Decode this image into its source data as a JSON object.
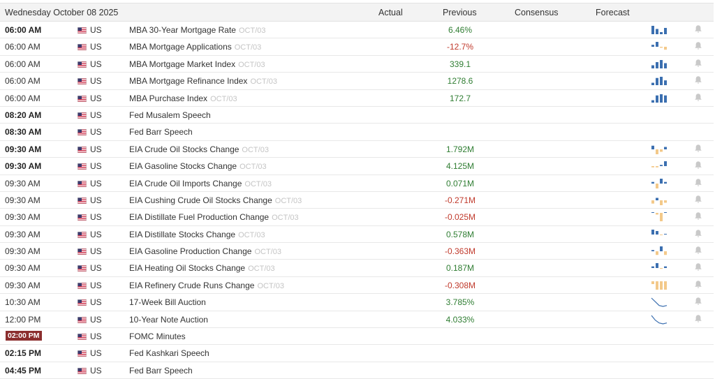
{
  "header": {
    "date": "Wednesday October 08 2025",
    "actual": "Actual",
    "previous": "Previous",
    "consensus": "Consensus",
    "forecast": "Forecast"
  },
  "colors": {
    "positive": "#2f7d32",
    "negative": "#c0392b",
    "bar_blue": "#3b6fb0",
    "bar_tan": "#f3c98a",
    "highlight": "#8b2e2e"
  },
  "rows": [
    {
      "time": "06:00 AM",
      "bold": true,
      "highlight": false,
      "flag": "us-flag-icon",
      "country": "US",
      "event": "MBA 30-Year Mortgage Rate",
      "ref": "OCT/03",
      "previous": "6.46%",
      "sign": "pos",
      "spark": [
        8,
        5,
        2,
        6
      ],
      "spark_type": "bar",
      "alert": true
    },
    {
      "time": "06:00 AM",
      "bold": false,
      "highlight": false,
      "flag": "us-flag-icon",
      "country": "US",
      "event": "MBA Mortgage Applications",
      "ref": "OCT/03",
      "previous": "-12.7%",
      "sign": "neg",
      "spark": [
        2,
        5,
        -1,
        -3
      ],
      "spark_type": "bar",
      "alert": true
    },
    {
      "time": "06:00 AM",
      "bold": false,
      "highlight": false,
      "flag": "us-flag-icon",
      "country": "US",
      "event": "MBA Mortgage Market Index",
      "ref": "OCT/03",
      "previous": "339.1",
      "sign": "pos",
      "spark": [
        3,
        6,
        8,
        5
      ],
      "spark_type": "bar",
      "alert": true
    },
    {
      "time": "06:00 AM",
      "bold": false,
      "highlight": false,
      "flag": "us-flag-icon",
      "country": "US",
      "event": "MBA Mortgage Refinance Index",
      "ref": "OCT/03",
      "previous": "1278.6",
      "sign": "pos",
      "spark": [
        2,
        6,
        7,
        4
      ],
      "spark_type": "bar",
      "alert": true
    },
    {
      "time": "06:00 AM",
      "bold": false,
      "highlight": false,
      "flag": "us-flag-icon",
      "country": "US",
      "event": "MBA Purchase Index",
      "ref": "OCT/03",
      "previous": "172.7",
      "sign": "pos",
      "spark": [
        2,
        6,
        7,
        6
      ],
      "spark_type": "bar",
      "alert": true
    },
    {
      "time": "08:20 AM",
      "bold": true,
      "highlight": false,
      "flag": "us-flag-icon",
      "country": "US",
      "event": "Fed Musalem Speech",
      "ref": "",
      "previous": "",
      "sign": "pos",
      "spark": [],
      "spark_type": "none",
      "alert": false
    },
    {
      "time": "08:30 AM",
      "bold": true,
      "highlight": false,
      "flag": "us-flag-icon",
      "country": "US",
      "event": "Fed Barr Speech",
      "ref": "",
      "previous": "",
      "sign": "pos",
      "spark": [],
      "spark_type": "none",
      "alert": false
    },
    {
      "time": "09:30 AM",
      "bold": true,
      "highlight": false,
      "flag": "us-flag-icon",
      "country": "US",
      "event": "EIA Crude Oil Stocks Change",
      "ref": "OCT/03",
      "previous": "1.792M",
      "sign": "pos",
      "spark": [
        3,
        -4,
        -2,
        2
      ],
      "spark_type": "bar",
      "alert": true
    },
    {
      "time": "09:30 AM",
      "bold": true,
      "highlight": false,
      "flag": "us-flag-icon",
      "country": "US",
      "event": "EIA Gasoline Stocks Change",
      "ref": "OCT/03",
      "previous": "4.125M",
      "sign": "pos",
      "spark": [
        -1,
        -1,
        1,
        4
      ],
      "spark_type": "bar",
      "alert": true
    },
    {
      "time": "09:30 AM",
      "bold": false,
      "highlight": false,
      "flag": "us-flag-icon",
      "country": "US",
      "event": "EIA Crude Oil Imports Change",
      "ref": "OCT/03",
      "previous": "0.071M",
      "sign": "pos",
      "spark": [
        1,
        -3,
        3,
        1
      ],
      "spark_type": "bar",
      "alert": true
    },
    {
      "time": "09:30 AM",
      "bold": false,
      "highlight": false,
      "flag": "us-flag-icon",
      "country": "US",
      "event": "EIA Cushing Crude Oil Stocks Change",
      "ref": "OCT/03",
      "previous": "-0.271M",
      "sign": "neg",
      "spark": [
        -4,
        3,
        -6,
        -3
      ],
      "spark_type": "bar",
      "alert": true
    },
    {
      "time": "09:30 AM",
      "bold": false,
      "highlight": false,
      "flag": "us-flag-icon",
      "country": "US",
      "event": "EIA Distillate Fuel Production Change",
      "ref": "OCT/03",
      "previous": "-0.025M",
      "sign": "neg",
      "spark": [
        0,
        -1,
        -5,
        0
      ],
      "spark_type": "bar",
      "alert": true
    },
    {
      "time": "09:30 AM",
      "bold": false,
      "highlight": false,
      "flag": "us-flag-icon",
      "country": "US",
      "event": "EIA Distillate Stocks Change",
      "ref": "OCT/03",
      "previous": "0.578M",
      "sign": "pos",
      "spark": [
        7,
        5,
        -1,
        1
      ],
      "spark_type": "bar",
      "alert": true
    },
    {
      "time": "09:30 AM",
      "bold": false,
      "highlight": false,
      "flag": "us-flag-icon",
      "country": "US",
      "event": "EIA Gasoline Production Change",
      "ref": "OCT/03",
      "previous": "-0.363M",
      "sign": "neg",
      "spark": [
        1,
        -3,
        4,
        -3
      ],
      "spark_type": "bar",
      "alert": true
    },
    {
      "time": "09:30 AM",
      "bold": false,
      "highlight": false,
      "flag": "us-flag-icon",
      "country": "US",
      "event": "EIA Heating Oil Stocks Change",
      "ref": "OCT/03",
      "previous": "0.187M",
      "sign": "pos",
      "spark": [
        2,
        6,
        -1,
        2
      ],
      "spark_type": "bar",
      "alert": true
    },
    {
      "time": "09:30 AM",
      "bold": false,
      "highlight": false,
      "flag": "us-flag-icon",
      "country": "US",
      "event": "EIA Refinery Crude Runs Change",
      "ref": "OCT/03",
      "previous": "-0.308M",
      "sign": "neg",
      "spark": [
        -2,
        -6,
        -6,
        -6
      ],
      "spark_type": "bar",
      "alert": true
    },
    {
      "time": "10:30 AM",
      "bold": false,
      "highlight": false,
      "flag": "us-flag-icon",
      "country": "US",
      "event": "17-Week Bill Auction",
      "ref": "",
      "previous": "3.785%",
      "sign": "pos",
      "spark": [
        10,
        6,
        2,
        1,
        2
      ],
      "spark_type": "line",
      "alert": true
    },
    {
      "time": "12:00 PM",
      "bold": false,
      "highlight": false,
      "flag": "us-flag-icon",
      "country": "US",
      "event": "10-Year Note Auction",
      "ref": "",
      "previous": "4.033%",
      "sign": "pos",
      "spark": [
        10,
        5,
        2,
        1,
        2
      ],
      "spark_type": "line",
      "alert": true
    },
    {
      "time": "02:00 PM",
      "bold": true,
      "highlight": true,
      "flag": "us-flag-icon",
      "country": "US",
      "event": "FOMC Minutes",
      "ref": "",
      "previous": "",
      "sign": "pos",
      "spark": [],
      "spark_type": "none",
      "alert": false
    },
    {
      "time": "02:15 PM",
      "bold": true,
      "highlight": false,
      "flag": "us-flag-icon",
      "country": "US",
      "event": "Fed Kashkari Speech",
      "ref": "",
      "previous": "",
      "sign": "pos",
      "spark": [],
      "spark_type": "none",
      "alert": false
    },
    {
      "time": "04:45 PM",
      "bold": true,
      "highlight": false,
      "flag": "us-flag-icon",
      "country": "US",
      "event": "Fed Barr Speech",
      "ref": "",
      "previous": "",
      "sign": "pos",
      "spark": [],
      "spark_type": "none",
      "alert": false
    }
  ]
}
